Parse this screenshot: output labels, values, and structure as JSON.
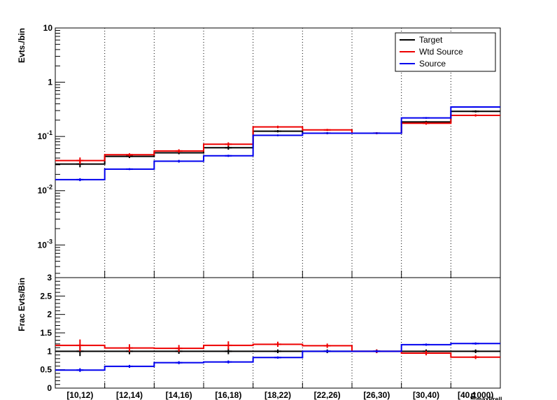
{
  "chart_data": [
    {
      "type": "line",
      "panel": "top",
      "ylabel": "Evts./bin",
      "yscale": "log",
      "ylim": [
        0.00025,
        10
      ],
      "ytick_labels": [
        {
          "value": 0.001,
          "base": "10",
          "exp": "-3"
        },
        {
          "value": 0.01,
          "base": "10",
          "exp": "-2"
        },
        {
          "value": 0.1,
          "base": "10",
          "exp": "-1"
        },
        {
          "value": 1,
          "base": "1",
          "exp": ""
        },
        {
          "value": 10,
          "base": "10",
          "exp": ""
        }
      ],
      "grid": "vertical dotted",
      "legend_position": "top-right",
      "categories": [
        "[10,12)",
        "[12,14)",
        "[14,16)",
        "[16,18)",
        "[18,22)",
        "[22,26)",
        "[26,30)",
        "[30,40)",
        "[40,1000)"
      ],
      "series": [
        {
          "name": "Target",
          "color": "#000000",
          "values": [
            0.031,
            0.043,
            0.05,
            0.062,
            0.125,
            0.115,
            0.115,
            0.185,
            0.29
          ],
          "errors": [
            0.004,
            0.003,
            0.003,
            0.005,
            0.006,
            0.005,
            0.005,
            0.009,
            0.013
          ]
        },
        {
          "name": "Wtd Source",
          "color": "#ee0000",
          "values": [
            0.036,
            0.046,
            0.054,
            0.072,
            0.15,
            0.132,
            0.115,
            0.175,
            0.245
          ],
          "errors": [
            0.005,
            0.003,
            0.004,
            0.006,
            0.008,
            0.006,
            0.005,
            0.01,
            0.012
          ]
        },
        {
          "name": "Source",
          "color": "#0000ee",
          "values": [
            0.016,
            0.025,
            0.035,
            0.044,
            0.105,
            0.115,
            0.115,
            0.22,
            0.35
          ],
          "errors": [
            0.001,
            0.001,
            0.002,
            0.002,
            0.004,
            0.004,
            0.004,
            0.008,
            0.01
          ]
        }
      ]
    },
    {
      "type": "line",
      "panel": "bottom",
      "ylabel": "Frac Evts/Bin",
      "xlabel": "E",
      "xlabel_sub": "maxFrell",
      "ylim": [
        0,
        3
      ],
      "ytick_labels": [
        "0",
        "0.5",
        "1",
        "1.5",
        "2",
        "2.5",
        "3"
      ],
      "grid": "vertical dotted",
      "categories": [
        "[10,12)",
        "[12,14)",
        "[14,16)",
        "[16,18)",
        "[18,22)",
        "[22,26)",
        "[26,30)",
        "[30,40)",
        "[40,1000)"
      ],
      "series": [
        {
          "name": "Target",
          "color": "#000000",
          "values": [
            1,
            1,
            1,
            1,
            1,
            1,
            1,
            1,
            1
          ],
          "errors": [
            0.13,
            0.08,
            0.07,
            0.08,
            0.05,
            0.05,
            0.05,
            0.05,
            0.05
          ]
        },
        {
          "name": "Wtd Source",
          "color": "#ee0000",
          "values": [
            1.16,
            1.09,
            1.08,
            1.16,
            1.19,
            1.15,
            1.0,
            0.95,
            0.84
          ],
          "errors": [
            0.16,
            0.1,
            0.09,
            0.11,
            0.07,
            0.06,
            0.05,
            0.06,
            0.05
          ]
        },
        {
          "name": "Source",
          "color": "#0000ee",
          "values": [
            0.49,
            0.59,
            0.69,
            0.71,
            0.83,
            1.0,
            1.0,
            1.18,
            1.21
          ],
          "errors": [
            0.05,
            0.04,
            0.04,
            0.04,
            0.03,
            0.03,
            0.03,
            0.03,
            0.03
          ]
        }
      ]
    }
  ]
}
